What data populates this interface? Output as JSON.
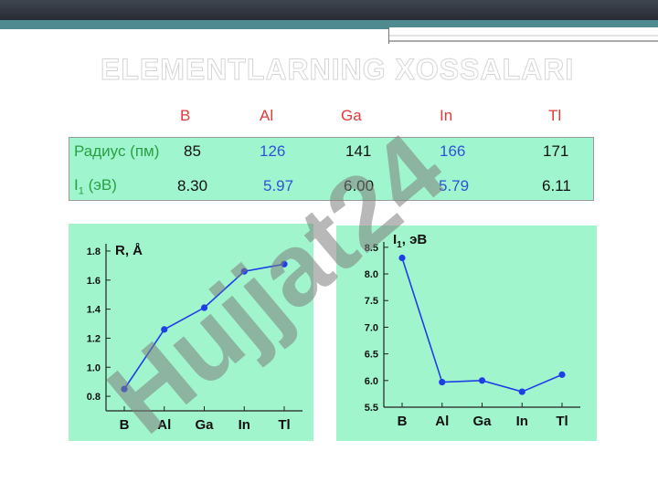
{
  "title": "ELEMENTLARNING XOSSALARI",
  "table": {
    "elements": [
      "B",
      "Al",
      "Ga",
      "In",
      "Tl"
    ],
    "rows": [
      {
        "label": "Радиус (пм)",
        "values": [
          "85",
          "126",
          "141",
          "166",
          "171"
        ]
      },
      {
        "label_main": "I",
        "label_sub": "1",
        "label_rest": " (эВ)",
        "values": [
          "8.30",
          "5.97",
          "6.00",
          "5.79",
          "6.11"
        ]
      }
    ]
  },
  "chart_data": [
    {
      "type": "line",
      "title_main": "R, Å",
      "categories": [
        "B",
        "Al",
        "Ga",
        "In",
        "Tl"
      ],
      "values": [
        0.85,
        1.26,
        1.41,
        1.66,
        1.71
      ],
      "ylim": [
        0.7,
        1.85
      ],
      "yticks": [
        "0.8",
        "1.0",
        "1.2",
        "1.4",
        "1.6",
        "1.8"
      ],
      "grid": false,
      "line_color": "#1f3fe6"
    },
    {
      "type": "line",
      "title_main": "I",
      "title_sub": "1",
      "title_rest": ", эВ",
      "categories": [
        "B",
        "Al",
        "Ga",
        "In",
        "Tl"
      ],
      "values": [
        8.3,
        5.97,
        6.0,
        5.79,
        6.11
      ],
      "ylim": [
        5.5,
        8.6
      ],
      "yticks": [
        "5.5",
        "6.0",
        "6.5",
        "7.0",
        "7.5",
        "8.0",
        "8.5"
      ],
      "grid": false,
      "line_color": "#1f3fe6"
    }
  ],
  "watermark": "Hujjat24",
  "colors": {
    "watermark": "#7d7d7d",
    "accent": "#4f8a91",
    "panel": "#a0f5cd"
  }
}
